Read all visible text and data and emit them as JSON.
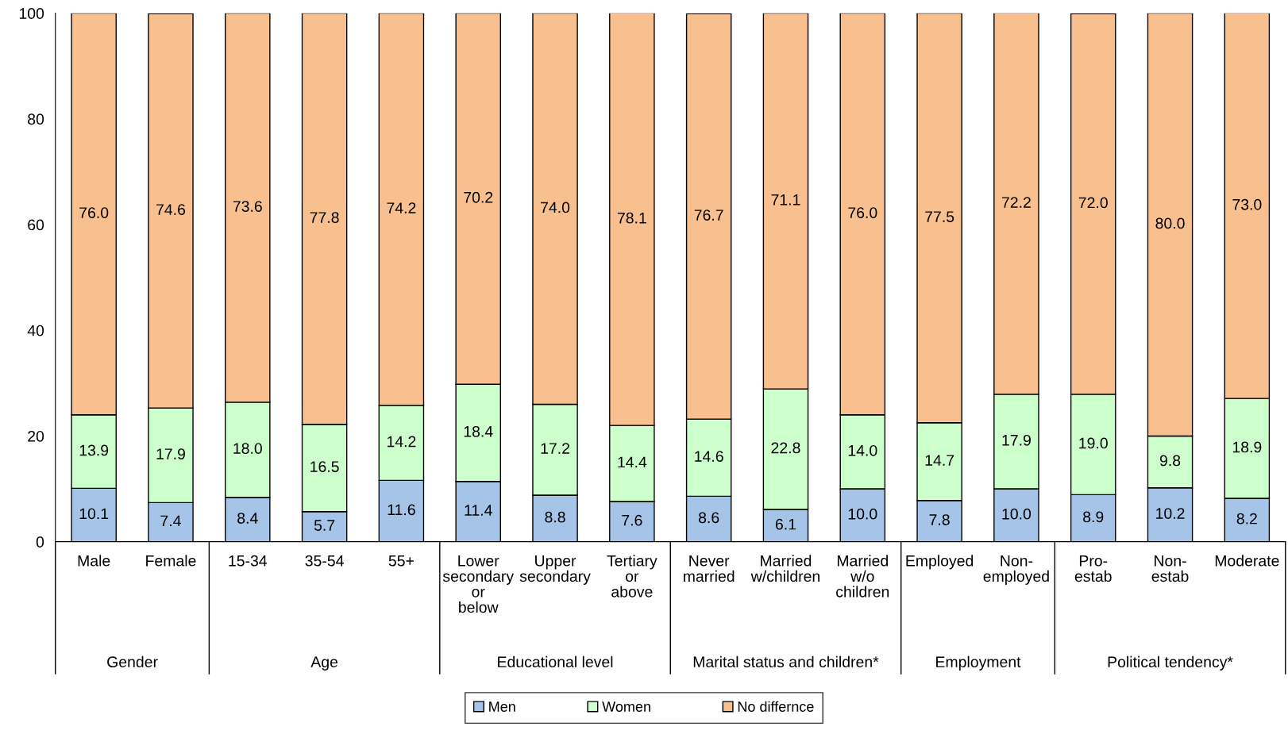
{
  "chart_data": {
    "type": "bar",
    "stacked": true,
    "grid": false,
    "legend": "bottom",
    "categories": [
      "Male",
      "Female",
      "15-34",
      "35-54",
      "55+",
      "Lower\nsecondary\nor\nbelow",
      "Upper\nsecondary",
      "Tertiary\nor\nabove",
      "Never\nmarried",
      "Married\nw/children",
      "Married\nw/o\nchildren",
      "Employed",
      "Non-\nemployed",
      "Pro-\nestab",
      "Non-\nestab",
      "Moderate"
    ],
    "series": [
      {
        "name": "Men",
        "color": "#a6c4e8",
        "values": [
          10.1,
          7.4,
          8.4,
          5.7,
          11.6,
          11.4,
          8.8,
          7.6,
          8.6,
          6.1,
          10.0,
          7.8,
          10.0,
          8.9,
          10.2,
          8.2
        ],
        "value_labels": [
          "10.1",
          "7.4",
          "8.4",
          "5.7",
          "11.6",
          "11.4",
          "8.8",
          "7.6",
          "8.6",
          "6.1",
          "10.0",
          "7.8",
          "10.0",
          "8.9",
          "10.2",
          "8.2"
        ]
      },
      {
        "name": "Women",
        "color": "#ccffcc",
        "values": [
          13.9,
          17.9,
          18.0,
          16.5,
          14.2,
          18.4,
          17.2,
          14.4,
          14.6,
          22.8,
          14.0,
          14.7,
          17.9,
          19.0,
          9.8,
          18.9
        ],
        "value_labels": [
          "13.9",
          "17.9",
          "18.0",
          "16.5",
          "14.2",
          "18.4",
          "17.2",
          "14.4",
          "14.6",
          "22.8",
          "14.0",
          "14.7",
          "17.9",
          "19.0",
          "9.8",
          "18.9"
        ]
      },
      {
        "name": "No differnce",
        "color": "#f9c08f",
        "values": [
          76.0,
          74.6,
          73.6,
          77.8,
          74.2,
          70.2,
          74.0,
          78.1,
          76.7,
          71.1,
          76.0,
          77.5,
          72.2,
          72.0,
          80.0,
          73.0
        ],
        "value_labels": [
          "76.0",
          "74.6",
          "73.6",
          "77.8",
          "74.2",
          "70.2",
          "74.0",
          "78.1",
          "76.7",
          "71.1",
          "76.0",
          "77.5",
          "72.2",
          "72.0",
          "80.0",
          "73.0"
        ]
      }
    ],
    "ylim": [
      0,
      100
    ],
    "yticks": [
      0,
      20,
      40,
      60,
      80,
      100
    ],
    "annotations": [
      "Gender",
      "Age",
      "Educational level",
      "Marital status and children*",
      "Employment",
      "Political tendency*"
    ]
  }
}
